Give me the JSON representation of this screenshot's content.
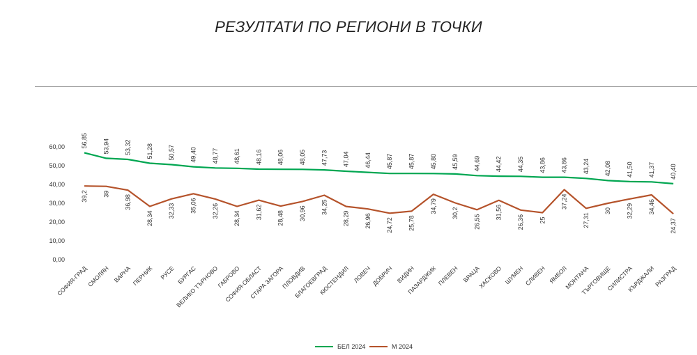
{
  "chart_data": {
    "type": "line",
    "title": "РЕЗУЛТАТИ ПО РЕГИОНИ В ТОЧКИ",
    "categories": [
      "СОФИЯ-ГРАД",
      "СМОЛЯН",
      "ВАРНА",
      "ПЕРНИК",
      "РУСЕ",
      "БУРГАС",
      "ВЕЛИКО ТЪРНОВО",
      "ГАБРОВО",
      "СОФИЯ-ОБЛАСТ",
      "СТАРА ЗАГОРА",
      "ПЛОВДИВ",
      "БЛАГОЕВГРАД",
      "КЮСТЕНДИЛ",
      "ЛОВЕЧ",
      "ДОБРИЧ",
      "ВИДИН",
      "ПАЗАРДЖИК",
      "ПЛЕВЕН",
      "ВРАЦА",
      "ХАСКОВО",
      "ШУМЕН",
      "СЛИВЕН",
      "ЯМБОЛ",
      "МОНТАНА",
      "ТЪРГОВИЩЕ",
      "СИЛИСТРА",
      "КЪРДЖАЛИ",
      "РАЗГРАД"
    ],
    "series": [
      {
        "name": "БЕЛ 2024",
        "color": "#00a651",
        "values": [
          56.85,
          53.94,
          53.32,
          51.28,
          50.57,
          49.4,
          48.77,
          48.61,
          48.16,
          48.06,
          48.05,
          47.73,
          47.04,
          46.44,
          45.87,
          45.87,
          45.8,
          45.59,
          44.69,
          44.42,
          44.35,
          43.86,
          43.86,
          43.24,
          42.08,
          41.5,
          41.37,
          40.4
        ],
        "labels": [
          "56,85",
          "53,94",
          "53,32",
          "51,28",
          "50,57",
          "49,40",
          "48,77",
          "48,61",
          "48,16",
          "48,06",
          "48,05",
          "47,73",
          "47,04",
          "46,44",
          "45,87",
          "45,87",
          "45,80",
          "45,59",
          "44,69",
          "44,42",
          "44,35",
          "43,86",
          "43,86",
          "43,24",
          "42,08",
          "41,50",
          "41,37",
          "40,40"
        ]
      },
      {
        "name": "М 2024",
        "color": "#b5532b",
        "values": [
          39.2,
          39,
          36.98,
          28.34,
          32.33,
          35.06,
          32.26,
          28.34,
          31.62,
          28.48,
          30.96,
          34.25,
          28.29,
          26.96,
          24.72,
          25.78,
          34.79,
          30.2,
          26.55,
          31.56,
          26.36,
          25,
          37.24,
          27.31,
          30,
          32.29,
          34.46,
          24.37
        ],
        "labels": [
          "39,2",
          "39",
          "36,98",
          "28,34",
          "32,33",
          "35,06",
          "32,26",
          "28,34",
          "31,62",
          "28,48",
          "30,96",
          "34,25",
          "28,29",
          "26,96",
          "24,72",
          "25,78",
          "34,79",
          "30,2",
          "26,55",
          "31,56",
          "26,36",
          "25",
          "37,24",
          "27,31",
          "30",
          "32,29",
          "34,46",
          "24,37"
        ]
      }
    ],
    "y_ticks": [
      "0,00",
      "10,00",
      "20,00",
      "30,00",
      "40,00",
      "50,00",
      "60,00"
    ],
    "ylim": [
      0,
      60
    ],
    "grid": false,
    "legend_position": "bottom"
  }
}
